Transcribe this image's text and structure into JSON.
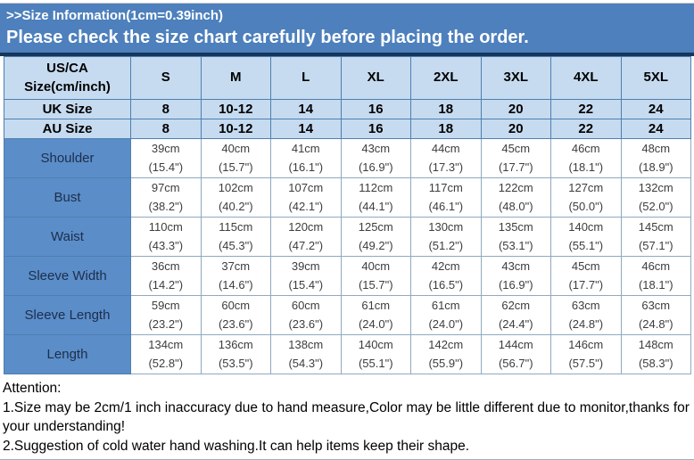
{
  "banner": {
    "title": ">>Size Information(1cm=0.39inch)",
    "subtitle": "Please check the size chart carefully before placing the order."
  },
  "colors": {
    "banner_blue": "#4d80bc",
    "navy_divider": "#16365c",
    "header_light_blue": "#c6dbf0",
    "label_cell_blue": "#5b8dc9"
  },
  "size_table": {
    "corner_label": "US/CA\nSize(cm/inch)",
    "columns": [
      "S",
      "M",
      "L",
      "XL",
      "2XL",
      "3XL",
      "4XL",
      "5XL"
    ],
    "uk_row": {
      "label": "UK Size",
      "values": [
        "8",
        "10-12",
        "14",
        "16",
        "18",
        "20",
        "22",
        "24"
      ]
    },
    "au_row": {
      "label": "AU Size",
      "values": [
        "8",
        "10-12",
        "14",
        "16",
        "18",
        "20",
        "22",
        "24"
      ]
    },
    "rows": [
      {
        "label": "Shoulder",
        "cells": [
          "39cm\n(15.4\")",
          "40cm\n(15.7\")",
          "41cm\n(16.1\")",
          "43cm\n(16.9\")",
          "44cm\n(17.3\")",
          "45cm\n(17.7\")",
          "46cm\n(18.1\")",
          "48cm\n(18.9\")"
        ]
      },
      {
        "label": "Bust",
        "cells": [
          "97cm\n(38.2\")",
          "102cm\n(40.2\")",
          "107cm\n(42.1\")",
          "112cm\n(44.1\")",
          "117cm\n(46.1\")",
          "122cm\n(48.0\")",
          "127cm\n(50.0\")",
          "132cm\n(52.0\")"
        ]
      },
      {
        "label": "Waist",
        "cells": [
          "110cm\n(43.3\")",
          "115cm\n(45.3\")",
          "120cm\n(47.2\")",
          "125cm\n(49.2\")",
          "130cm\n(51.2\")",
          "135cm\n(53.1\")",
          "140cm\n(55.1\")",
          "145cm\n(57.1\")"
        ]
      },
      {
        "label": "Sleeve Width",
        "cells": [
          "36cm\n(14.2\")",
          "37cm\n(14.6\")",
          "39cm\n(15.4\")",
          "40cm\n(15.7\")",
          "42cm\n(16.5\")",
          "43cm\n(16.9\")",
          "45cm\n(17.7\")",
          "46cm\n(18.1\")"
        ]
      },
      {
        "label": "Sleeve Length",
        "cells": [
          "59cm\n(23.2\")",
          "60cm\n(23.6\")",
          "60cm\n(23.6\")",
          "61cm\n(24.0\")",
          "61cm\n(24.0\")",
          "62cm\n(24.4\")",
          "63cm\n(24.8\")",
          "63cm\n(24.8\")"
        ]
      },
      {
        "label": "Length",
        "cells": [
          "134cm\n(52.8\")",
          "136cm\n(53.5\")",
          "138cm\n(54.3\")",
          "140cm\n(55.1\")",
          "142cm\n(55.9\")",
          "144cm\n(56.7\")",
          "146cm\n(57.5\")",
          "148cm\n(58.3\")"
        ]
      }
    ]
  },
  "attention": {
    "title": "Attention:",
    "line1": "1.Size may be 2cm/1 inch inaccuracy due to hand measure,Color may be little different due to monitor,thanks for your understanding!",
    "line2": "2.Suggestion of cold water hand washing.It can help items keep their shape."
  }
}
